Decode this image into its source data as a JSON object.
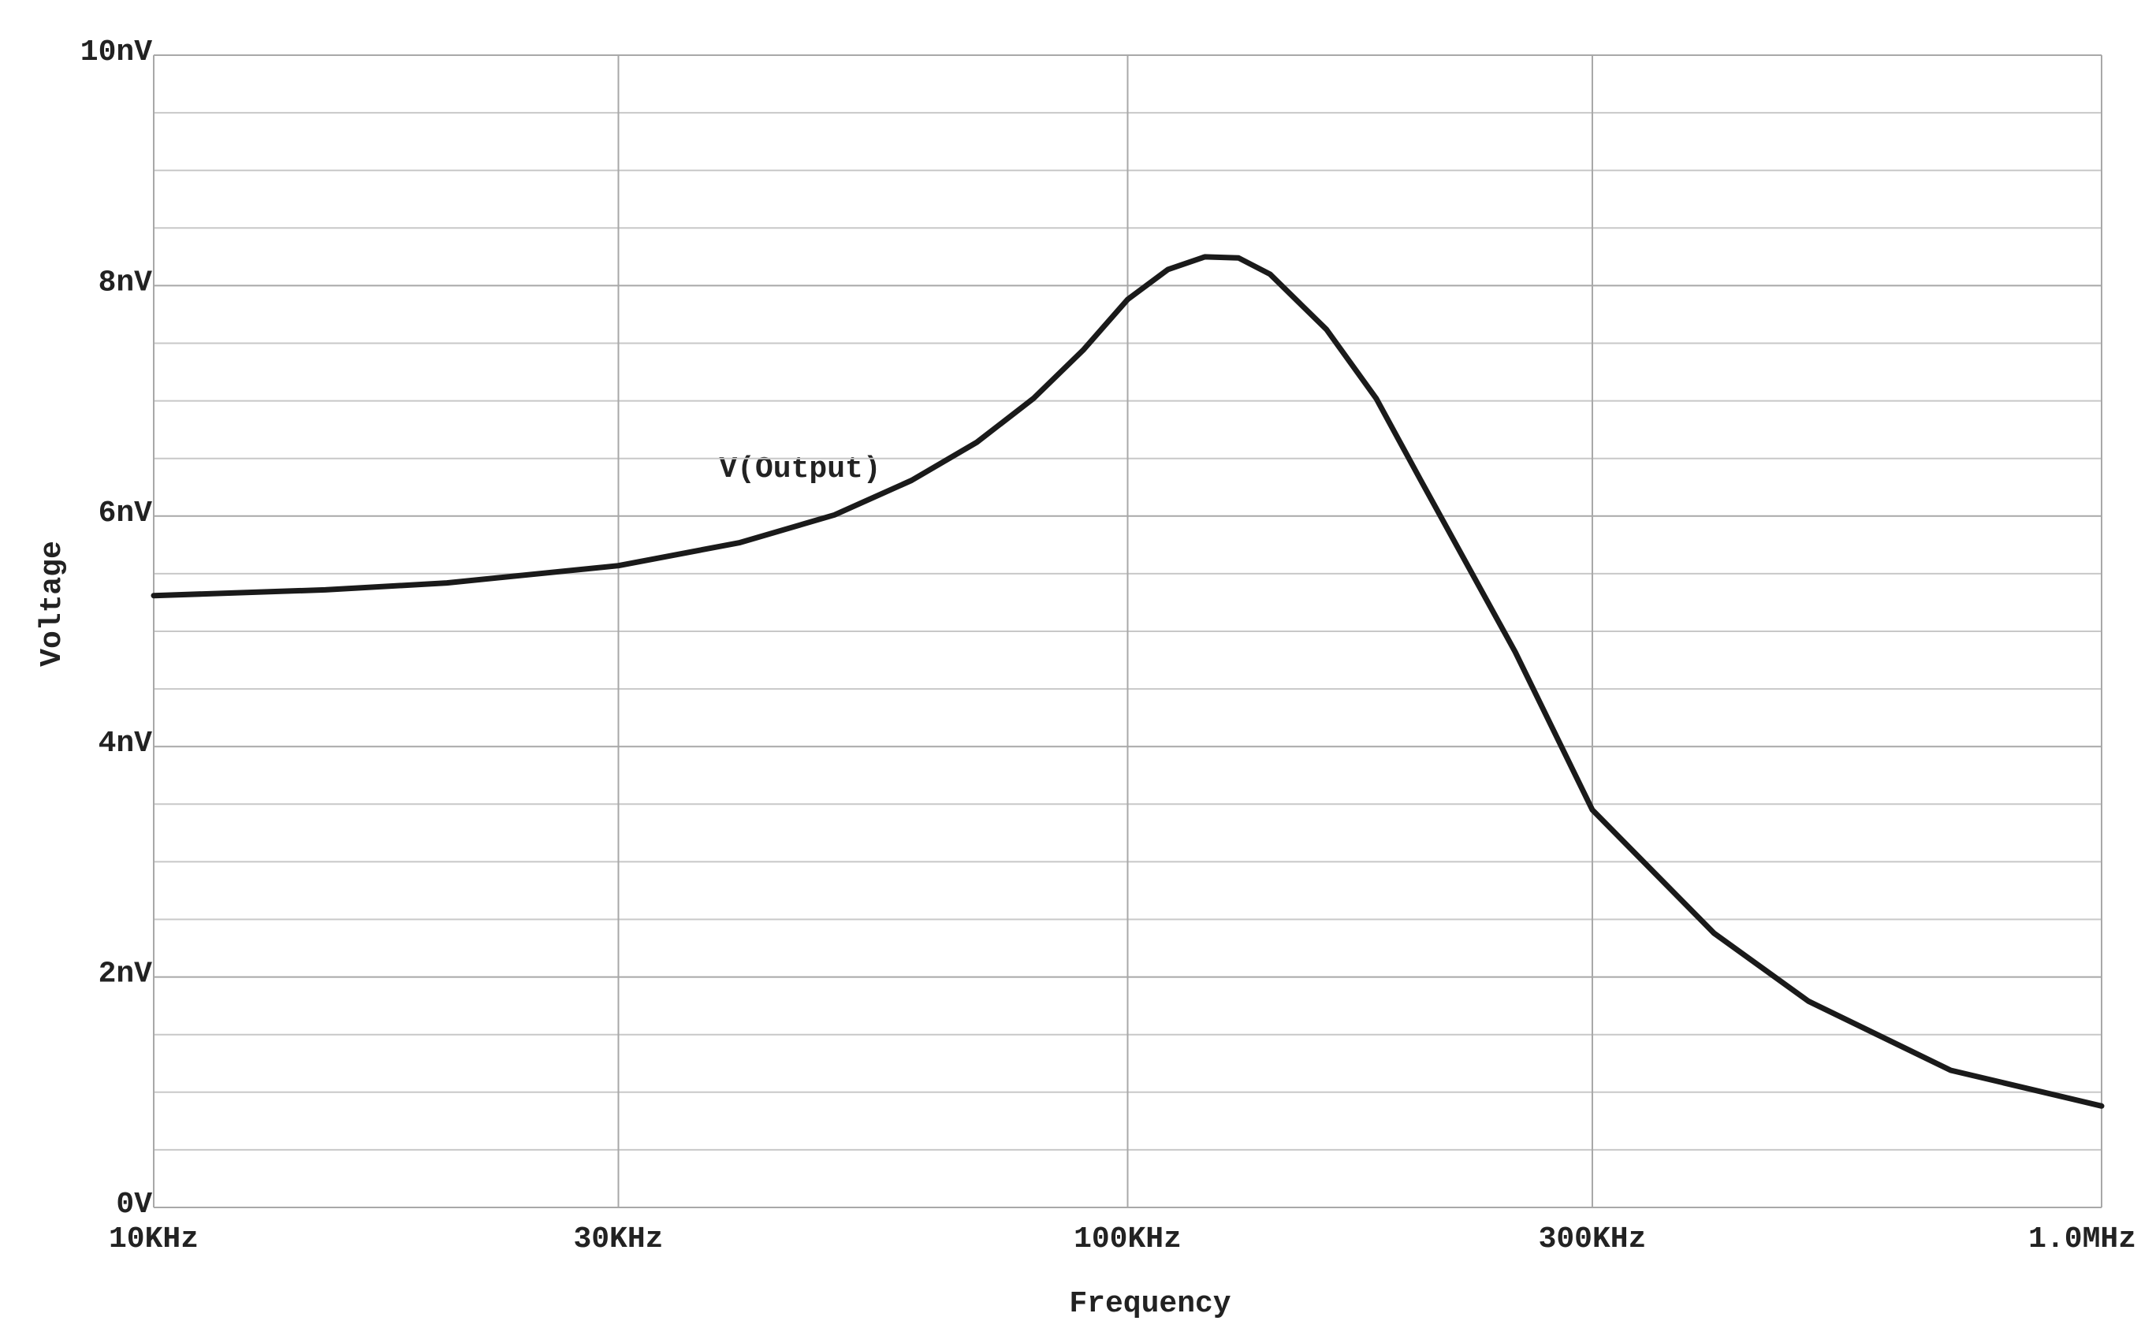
{
  "chart_data": {
    "type": "line",
    "x_label": "Frequency",
    "y_label": "Voltage",
    "annotations": [
      "V(Output)"
    ],
    "series": [
      {
        "name": "V(Output)",
        "color": "#1a1a1a",
        "x": [
          10000,
          15000,
          20000,
          30000,
          40000,
          50000,
          60000,
          70000,
          80000,
          90000,
          100000,
          110000,
          120000,
          130000,
          140000,
          160000,
          180000,
          200000,
          250000,
          300000,
          400000,
          500000,
          700000,
          1000000
        ],
        "values": [
          5.31,
          5.36,
          5.42,
          5.57,
          5.77,
          6.01,
          6.31,
          6.64,
          7.02,
          7.44,
          7.88,
          8.14,
          8.25,
          8.24,
          8.1,
          7.62,
          7.02,
          6.31,
          4.82,
          3.45,
          2.38,
          1.79,
          1.19,
          0.88
        ]
      }
    ],
    "xscale": "log",
    "xlim": [
      10000,
      1000000
    ],
    "xticks": [
      {
        "value": 10000,
        "label": "10KHz"
      },
      {
        "value": 30000,
        "label": "30KHz"
      },
      {
        "value": 100000,
        "label": "100KHz"
      },
      {
        "value": 300000,
        "label": "300KHz"
      },
      {
        "value": 1000000,
        "label": "1.0MHz"
      }
    ],
    "ylim": [
      0,
      10
    ],
    "yticks": [
      {
        "value": 0,
        "label": "0V"
      },
      {
        "value": 2,
        "label": "2nV"
      },
      {
        "value": 4,
        "label": "4nV"
      },
      {
        "value": 6,
        "label": "6nV"
      },
      {
        "value": 8,
        "label": "8nV"
      },
      {
        "value": 10,
        "label": "10nV"
      }
    ],
    "yminorticks": [
      0.5,
      1,
      1.5,
      2.5,
      3,
      3.5,
      4.5,
      5,
      5.5,
      6.5,
      7,
      7.5,
      8.5,
      9,
      9.5
    ],
    "grid": true
  }
}
